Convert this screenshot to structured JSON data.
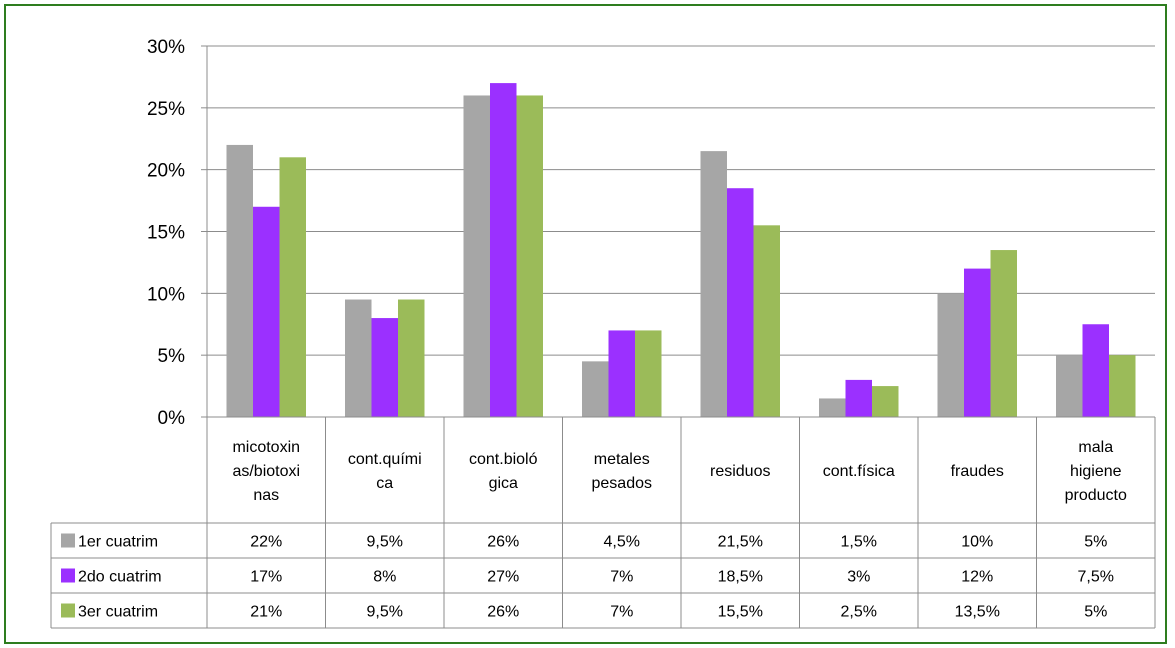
{
  "chart_data": {
    "type": "bar",
    "categories": [
      [
        "micotoxin",
        "as/biotoxi",
        "nas"
      ],
      [
        "cont.quími",
        "ca"
      ],
      [
        "cont.bioló",
        "gica"
      ],
      [
        "metales",
        "pesados"
      ],
      [
        "residuos"
      ],
      [
        "cont.física"
      ],
      [
        "fraudes"
      ],
      [
        "mala",
        "higiene",
        "producto"
      ]
    ],
    "series": [
      {
        "name": "1er cuatrim",
        "color": "#a6a6a6",
        "values": [
          22,
          9.5,
          26,
          4.5,
          21.5,
          1.5,
          10,
          5
        ],
        "labels": [
          "22%",
          "9,5%",
          "26%",
          "4,5%",
          "21,5%",
          "1,5%",
          "10%",
          "5%"
        ]
      },
      {
        "name": "2do cuatrim",
        "color": "#9b30ff",
        "values": [
          17,
          8,
          27,
          7,
          18.5,
          3,
          12,
          7.5
        ],
        "labels": [
          "17%",
          "8%",
          "27%",
          "7%",
          "18,5%",
          "3%",
          "12%",
          "7,5%"
        ]
      },
      {
        "name": "3er cuatrim",
        "color": "#9bbb59",
        "values": [
          21,
          9.5,
          26,
          7,
          15.5,
          2.5,
          13.5,
          5
        ],
        "labels": [
          "21%",
          "9,5%",
          "26%",
          "7%",
          "15,5%",
          "2,5%",
          "13,5%",
          "5%"
        ]
      }
    ],
    "yticks": [
      "0%",
      "5%",
      "10%",
      "15%",
      "20%",
      "25%",
      "30%"
    ],
    "ylim": [
      0,
      30
    ],
    "grid": true,
    "legend": "data-table-left"
  }
}
